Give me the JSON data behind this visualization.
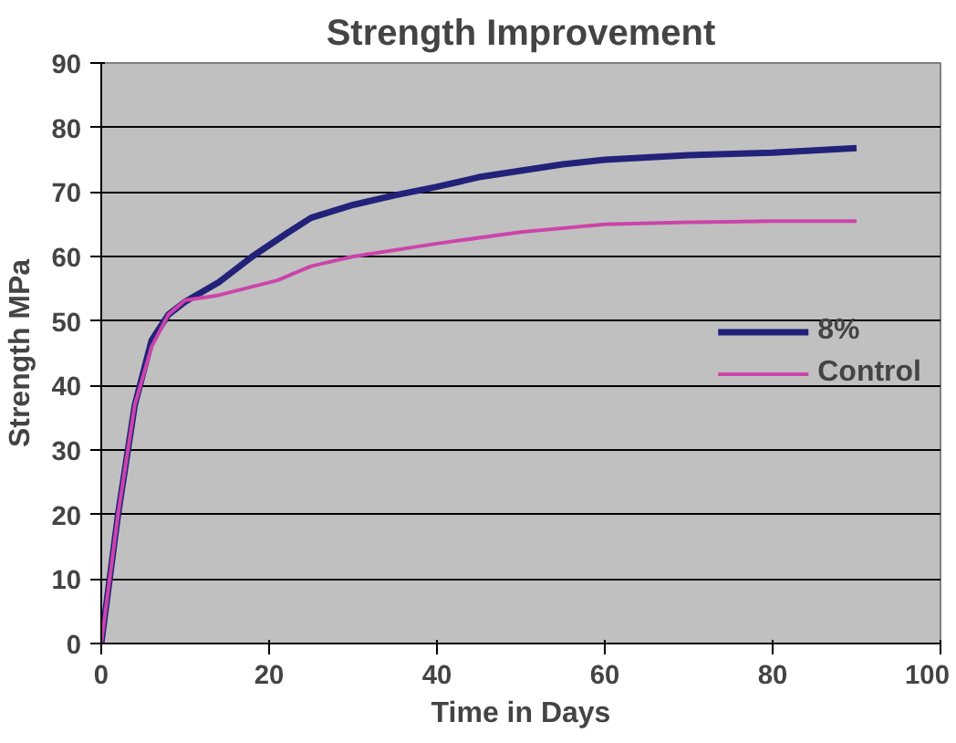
{
  "chart_data": {
    "type": "line",
    "title": "Strength Improvement",
    "xlabel": "Time in Days",
    "ylabel": "Strength MPa",
    "xlim": [
      0,
      100
    ],
    "xticks": [
      0,
      20,
      40,
      60,
      80,
      100
    ],
    "ylim": [
      0,
      90
    ],
    "yticks": [
      0,
      10,
      20,
      30,
      40,
      50,
      60,
      70,
      80,
      90
    ],
    "grid": "y",
    "legend": "right",
    "series": [
      {
        "name": "8%",
        "color": "#22227a",
        "x": [
          0,
          2,
          4,
          6,
          8,
          10,
          14,
          18,
          22,
          25,
          30,
          35,
          40,
          45,
          50,
          55,
          60,
          70,
          80,
          90
        ],
        "values": [
          0,
          20,
          37,
          47,
          51,
          53,
          56,
          60,
          63.5,
          66,
          68,
          69.5,
          70.8,
          72.3,
          73.3,
          74.3,
          75,
          75.7,
          76.1,
          76.8
        ]
      },
      {
        "name": "Control",
        "color": "#cc44aa",
        "x": [
          0,
          2,
          4,
          6,
          8,
          10,
          14,
          17,
          21,
          25,
          30,
          40,
          50,
          60,
          70,
          80,
          90
        ],
        "values": [
          0,
          20,
          37,
          46,
          51,
          53.2,
          54,
          55,
          56.3,
          58.5,
          60,
          62,
          63.8,
          65,
          65.3,
          65.5,
          65.5
        ]
      }
    ]
  }
}
